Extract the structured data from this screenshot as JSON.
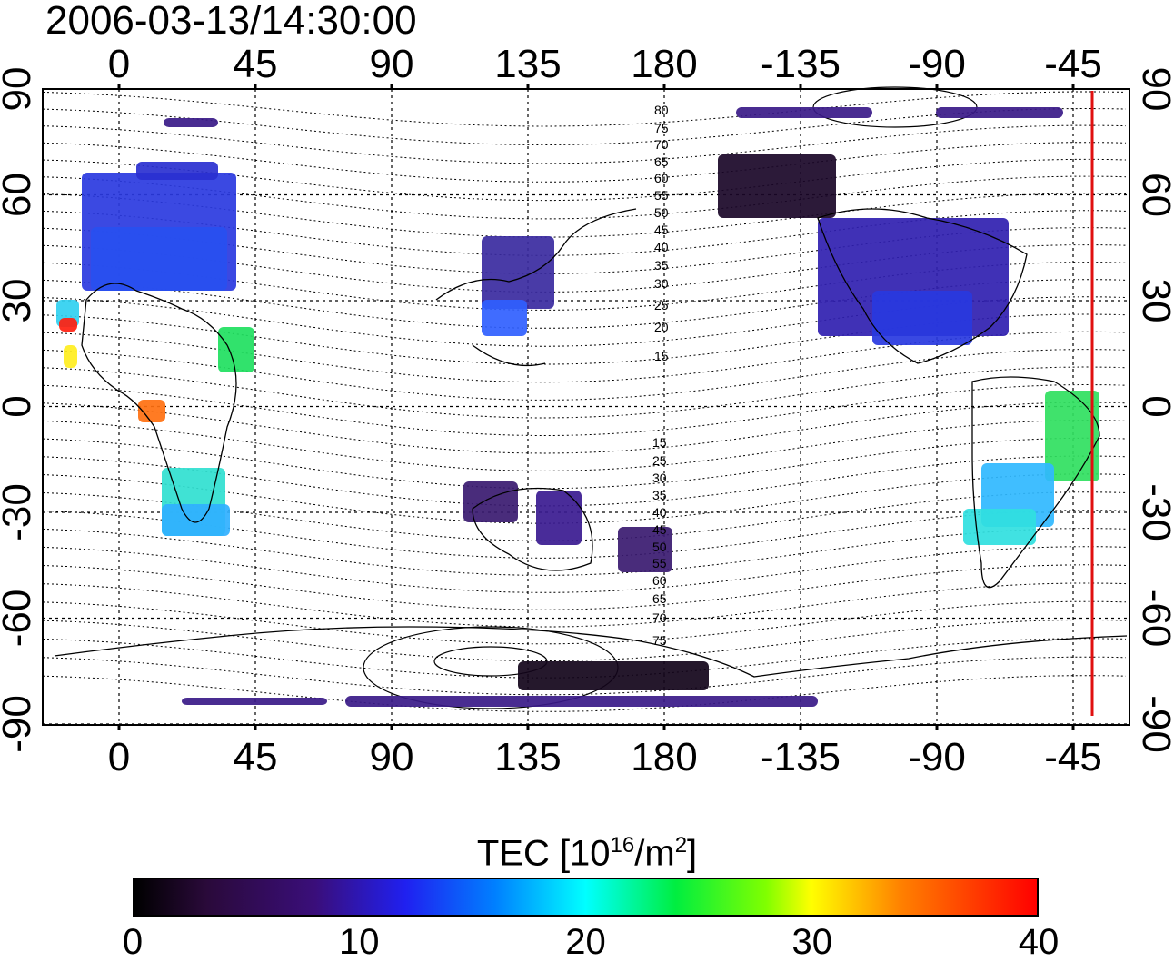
{
  "timestamp": "2006-03-13/14:30:00",
  "map": {
    "top_lon_labels": [
      "0",
      "45",
      "90",
      "135",
      "180",
      "-135",
      "-90",
      "-45"
    ],
    "bottom_lon_labels": [
      "0",
      "45",
      "90",
      "135",
      "180",
      "-135",
      "-90",
      "-45"
    ],
    "left_lat_labels": [
      "90",
      "60",
      "30",
      "0",
      "-30",
      "-60",
      "-90"
    ],
    "right_lat_labels": [
      "90",
      "60",
      "30",
      "0",
      "-30",
      "-60",
      "-90"
    ],
    "contour_labels": [
      "80",
      "75",
      "70",
      "65",
      "60",
      "55",
      "50",
      "45",
      "40",
      "35",
      "30",
      "25",
      "20",
      "15",
      "15",
      "25",
      "30",
      "35",
      "40",
      "45",
      "50",
      "55",
      "60",
      "65",
      "70",
      "75"
    ],
    "terminator_color": "#e01010"
  },
  "colorbar": {
    "title_prefix": "TEC  [10",
    "title_exp1": "16",
    "title_mid": "/m",
    "title_exp2": "2",
    "title_suffix": "]",
    "ticks": [
      "0",
      "10",
      "20",
      "30",
      "40"
    ],
    "range": [
      0,
      40
    ]
  }
}
